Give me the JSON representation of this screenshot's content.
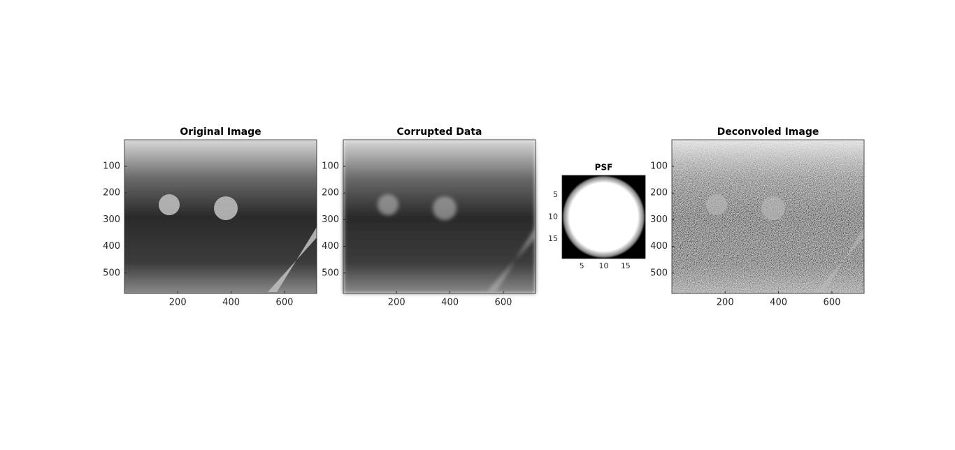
{
  "chart_data": [
    {
      "type": "image",
      "title": "Original Image",
      "xlim": [
        0.5,
        720.5
      ],
      "ylim": [
        0.5,
        576.5
      ],
      "xticks": [
        200,
        400,
        600
      ],
      "yticks": [
        100,
        200,
        300,
        400,
        500
      ]
    },
    {
      "type": "image",
      "title": "Corrupted Data",
      "xlim": [
        0.5,
        720.5
      ],
      "ylim": [
        0.5,
        576.5
      ],
      "xticks": [
        200,
        400,
        600
      ],
      "yticks": [
        100,
        200,
        300,
        400,
        500
      ]
    },
    {
      "type": "image",
      "title": "PSF",
      "xlim": [
        0.5,
        19.5
      ],
      "ylim": [
        0.5,
        19.5
      ],
      "xticks": [
        5,
        10,
        15
      ],
      "yticks": [
        5,
        10,
        15
      ]
    },
    {
      "type": "image",
      "title": "Deconvoled Image",
      "xlim": [
        0.5,
        720.5
      ],
      "ylim": [
        0.5,
        576.5
      ],
      "xticks": [
        200,
        400,
        600
      ],
      "yticks": [
        100,
        200,
        300,
        400,
        500
      ]
    }
  ]
}
